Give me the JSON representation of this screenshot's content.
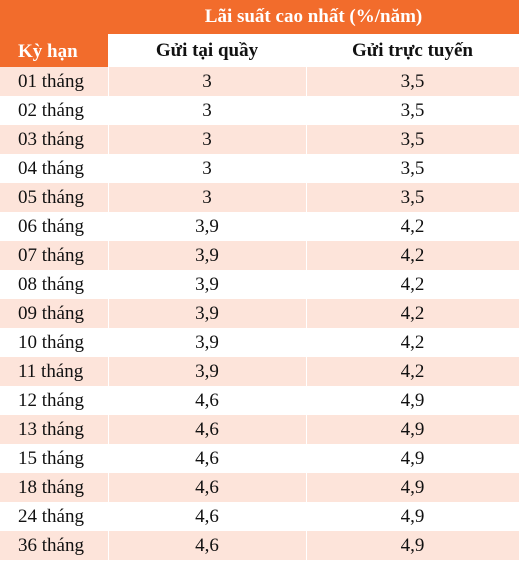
{
  "table": {
    "group_header": "Lãi suất cao nhất (%/năm)",
    "term_header": "Kỳ hạn",
    "col_counter": "Gửi tại quầy",
    "col_online": "Gửi trực tuyến",
    "rows": [
      {
        "term": "01 tháng",
        "counter": "3",
        "online": "3,5"
      },
      {
        "term": "02 tháng",
        "counter": "3",
        "online": "3,5"
      },
      {
        "term": "03 tháng",
        "counter": "3",
        "online": "3,5"
      },
      {
        "term": "04 tháng",
        "counter": "3",
        "online": "3,5"
      },
      {
        "term": "05 tháng",
        "counter": "3",
        "online": "3,5"
      },
      {
        "term": "06 tháng",
        "counter": "3,9",
        "online": "4,2"
      },
      {
        "term": "07 tháng",
        "counter": "3,9",
        "online": "4,2"
      },
      {
        "term": "08 tháng",
        "counter": "3,9",
        "online": "4,2"
      },
      {
        "term": "09 tháng",
        "counter": "3,9",
        "online": "4,2"
      },
      {
        "term": "10 tháng",
        "counter": "3,9",
        "online": "4,2"
      },
      {
        "term": "11 tháng",
        "counter": "3,9",
        "online": "4,2"
      },
      {
        "term": "12 tháng",
        "counter": "4,6",
        "online": "4,9"
      },
      {
        "term": "13 tháng",
        "counter": "4,6",
        "online": "4,9"
      },
      {
        "term": "15 tháng",
        "counter": "4,6",
        "online": "4,9"
      },
      {
        "term": "18 tháng",
        "counter": "4,6",
        "online": "4,9"
      },
      {
        "term": "24 tháng",
        "counter": "4,6",
        "online": "4,9"
      },
      {
        "term": "36 tháng",
        "counter": "4,6",
        "online": "4,9"
      }
    ]
  },
  "colors": {
    "header_bg": "#f26c2c",
    "stripe_bg": "#fde4da"
  }
}
